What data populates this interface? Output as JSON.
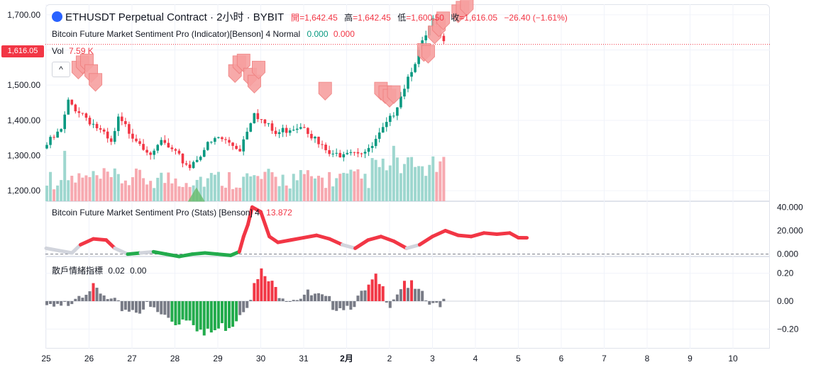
{
  "header": {
    "symbol_title": "ETHUSDT Perpetual Contract · 2小时 · BYBIT",
    "open_label": "開",
    "open_value": "=1,642.45",
    "high_label": "高",
    "high_value": "=1,642.45",
    "low_label": "低",
    "low_value": "=1,600.50",
    "close_label": "收",
    "close_value": "=1,616.05",
    "change": "−26.40 (−1.61%)"
  },
  "indicator1": {
    "name": "Bitcoin Future Market Sentiment Pro (Indicator)[Benson] 4 Normal",
    "value_a": "0.000",
    "value_b": "0.000"
  },
  "volume": {
    "label": "Vol",
    "value": "7.59 K"
  },
  "price_tag": "1,616.05",
  "collapse_glyph": "^",
  "colors": {
    "up": "#089981",
    "down": "#f23645",
    "up_vol": "#9ed7cf",
    "down_vol": "#f7a9b0",
    "marker": "#f7a0a0",
    "green_line": "#22ab4c",
    "gray_line": "#d1d4dc",
    "hist_gray": "#787b86"
  },
  "chart_data": [
    {
      "type": "candlestick",
      "title": "ETHUSDT Perpetual Contract · 2小时 · BYBIT",
      "ylim": [
        1170,
        1730
      ],
      "yticks": [
        "1,700.00",
        "1,600.00",
        "1,500.00",
        "1,400.00",
        "1,300.00",
        "1,200.00"
      ],
      "ytick_values": [
        1700,
        1600,
        1500,
        1400,
        1300,
        1200
      ],
      "x_start": 25.0,
      "bar_count": 112,
      "bar_step_days": 0.0833,
      "anchor_bars": [
        0,
        4,
        6,
        10,
        14,
        18,
        20,
        24,
        30,
        32,
        36,
        40,
        44,
        48,
        54,
        58,
        60,
        64,
        68,
        72,
        76,
        80,
        84,
        90,
        96,
        102,
        108,
        111
      ],
      "anchor_closes": [
        1330,
        1370,
        1450,
        1420,
        1380,
        1330,
        1400,
        1360,
        1300,
        1340,
        1300,
        1270,
        1320,
        1350,
        1320,
        1430,
        1400,
        1360,
        1380,
        1390,
        1330,
        1295,
        1320,
        1310,
        1400,
        1550,
        1680,
        1616
      ],
      "volume_scale": "0 to 12000",
      "sentiment_markers": [
        {
          "x": 25.75,
          "price": 1540
        },
        {
          "x": 25.85,
          "price": 1555
        },
        {
          "x": 25.95,
          "price": 1560
        },
        {
          "x": 26.05,
          "price": 1530
        },
        {
          "x": 26.15,
          "price": 1505
        },
        {
          "x": 29.4,
          "price": 1530
        },
        {
          "x": 29.5,
          "price": 1555
        },
        {
          "x": 29.6,
          "price": 1560
        },
        {
          "x": 29.75,
          "price": 1520
        },
        {
          "x": 29.85,
          "price": 1500
        },
        {
          "x": 29.95,
          "price": 1540
        },
        {
          "x": 31.5,
          "price": 1480
        },
        {
          "x": 32.8,
          "price": 1480
        },
        {
          "x": 32.9,
          "price": 1470
        },
        {
          "x": 33.0,
          "price": 1460
        },
        {
          "x": 33.1,
          "price": 1470
        },
        {
          "x": 33.8,
          "price": 1590
        },
        {
          "x": 33.9,
          "price": 1585
        },
        {
          "x": 34.05,
          "price": 1640
        },
        {
          "x": 34.15,
          "price": 1660
        },
        {
          "x": 34.25,
          "price": 1680
        },
        {
          "x": 34.6,
          "price": 1700
        },
        {
          "x": 34.7,
          "price": 1710
        },
        {
          "x": 34.8,
          "price": 1720
        }
      ],
      "buy_marker": {
        "x": 28.5,
        "price": 1185
      }
    },
    {
      "type": "line",
      "title": "Bitcoin Future Market Sentiment Pro (Stats) [Benson] 4",
      "current_value": "13.872",
      "ylim": [
        -2,
        45
      ],
      "yticks": [
        "40.000",
        "20.000",
        "0.000"
      ],
      "ytick_values": [
        40,
        20,
        0
      ],
      "x": [
        25.0,
        25.3,
        25.6,
        25.8,
        26.1,
        26.4,
        26.6,
        26.9,
        27.2,
        27.5,
        27.8,
        28.1,
        28.4,
        28.7,
        29.0,
        29.3,
        29.5,
        29.6,
        29.7,
        29.8,
        30.0,
        30.2,
        30.4,
        30.7,
        31.0,
        31.3,
        31.6,
        31.9,
        32.2,
        32.5,
        32.8,
        33.1,
        33.4,
        33.7,
        34.0,
        34.3,
        34.6,
        34.9,
        35.2,
        35.5,
        35.8,
        36.0,
        36.2
      ],
      "values": [
        5.0,
        3.0,
        1.0,
        8.0,
        13.0,
        12.0,
        5.0,
        0.0,
        1.0,
        2.0,
        0.0,
        -2.0,
        0.0,
        1.0,
        0.0,
        -1.0,
        2.0,
        15.0,
        25.0,
        40.0,
        36.0,
        15.0,
        10.0,
        12.0,
        14.0,
        16.0,
        13.0,
        8.0,
        5.0,
        12.0,
        15.0,
        11.0,
        5.0,
        8.0,
        15.0,
        20.0,
        16.0,
        15.0,
        18.0,
        17.0,
        18.0,
        14.0,
        13.9
      ]
    },
    {
      "type": "bar",
      "title": "散戶情緒指標",
      "value_a": "0.02",
      "value_b": "0.00",
      "ylim": [
        -0.34,
        0.32
      ],
      "yticks": [
        "0.20",
        "0.00",
        "−0.20"
      ],
      "ytick_values": [
        0.2,
        0.0,
        -0.2
      ],
      "bar_count": 112,
      "anchor_bars": [
        0,
        4,
        8,
        12,
        16,
        20,
        24,
        28,
        32,
        36,
        40,
        44,
        48,
        52,
        56,
        60,
        64,
        68,
        72,
        76,
        80,
        84,
        88,
        92,
        96,
        100,
        104,
        108,
        111
      ],
      "anchor_values": [
        -0.05,
        -0.06,
        0.05,
        0.1,
        0.02,
        -0.04,
        -0.06,
        -0.04,
        -0.1,
        -0.15,
        -0.1,
        -0.25,
        -0.2,
        -0.15,
        0.0,
        0.2,
        0.08,
        0.03,
        0.05,
        0.02,
        -0.02,
        -0.03,
        0.03,
        0.15,
        0.0,
        0.15,
        0.05,
        -0.05,
        0.02
      ]
    }
  ],
  "x_axis": {
    "labels": [
      "25",
      "26",
      "27",
      "28",
      "29",
      "30",
      "31",
      "2月",
      "2",
      "3",
      "4",
      "5",
      "6",
      "7",
      "8",
      "9",
      "10"
    ],
    "values": [
      25,
      26,
      27,
      28,
      29,
      30,
      31,
      32,
      33,
      34,
      35,
      36,
      37,
      38,
      39,
      40,
      41
    ]
  }
}
